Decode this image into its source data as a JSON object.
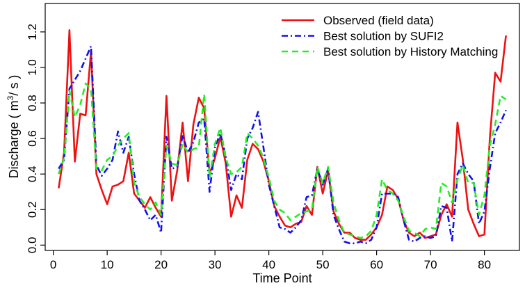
{
  "chart_data": {
    "type": "line",
    "title": "",
    "xlabel": "Time Point",
    "ylabel": "Discharge ( m³/ s )",
    "ylabel_parts": {
      "prefix": "Discharge ( m",
      "superscript": "3",
      "suffix": "/ s )"
    },
    "xlim": [
      -1.5,
      86.5
    ],
    "ylim": [
      -0.03,
      1.36
    ],
    "xticks": [
      0,
      10,
      20,
      30,
      40,
      50,
      60,
      70,
      80
    ],
    "yticks": [
      0.0,
      0.2,
      0.4,
      0.6,
      0.8,
      1.0,
      1.2
    ],
    "ytick_labels": [
      "0.0",
      "0.2",
      "0.4",
      "0.6",
      "0.8",
      "1.0",
      "1.2"
    ],
    "legend_position": "top-right",
    "x": [
      1,
      2,
      3,
      4,
      5,
      6,
      7,
      8,
      9,
      10,
      11,
      12,
      13,
      14,
      15,
      16,
      17,
      18,
      19,
      20,
      21,
      22,
      23,
      24,
      25,
      26,
      27,
      28,
      29,
      30,
      31,
      32,
      33,
      34,
      35,
      36,
      37,
      38,
      39,
      40,
      41,
      42,
      43,
      44,
      45,
      46,
      47,
      48,
      49,
      50,
      51,
      52,
      53,
      54,
      55,
      56,
      57,
      58,
      59,
      60,
      61,
      62,
      63,
      64,
      65,
      66,
      67,
      68,
      69,
      70,
      71,
      72,
      73,
      74,
      75,
      76,
      77,
      78,
      79,
      80,
      81,
      82,
      83,
      84
    ],
    "series": [
      {
        "name": "Observed (field data)",
        "color": "#ee1111",
        "style": "solid",
        "values": [
          0.32,
          0.52,
          1.21,
          0.47,
          0.74,
          0.73,
          1.09,
          0.4,
          0.31,
          0.23,
          0.33,
          0.34,
          0.36,
          0.52,
          0.29,
          0.25,
          0.21,
          0.27,
          0.21,
          0.16,
          0.84,
          0.25,
          0.42,
          0.69,
          0.36,
          0.68,
          0.83,
          0.77,
          0.4,
          0.49,
          0.61,
          0.46,
          0.16,
          0.28,
          0.21,
          0.48,
          0.57,
          0.54,
          0.47,
          0.36,
          0.22,
          0.16,
          0.11,
          0.1,
          0.12,
          0.13,
          0.22,
          0.17,
          0.44,
          0.29,
          0.42,
          0.19,
          0.12,
          0.07,
          0.07,
          0.04,
          0.03,
          0.03,
          0.06,
          0.1,
          0.17,
          0.33,
          0.31,
          0.26,
          0.14,
          0.07,
          0.05,
          0.07,
          0.04,
          0.05,
          0.06,
          0.17,
          0.23,
          0.16,
          0.69,
          0.48,
          0.2,
          0.12,
          0.05,
          0.06,
          0.6,
          0.97,
          0.92,
          1.18
        ]
      },
      {
        "name": "Best solution by SUFI2",
        "color": "#1111ee",
        "style": "dashdot",
        "values": [
          0.43,
          0.48,
          0.88,
          0.93,
          0.98,
          1.05,
          1.12,
          0.45,
          0.39,
          0.43,
          0.48,
          0.64,
          0.52,
          0.61,
          0.4,
          0.25,
          0.2,
          0.14,
          0.17,
          0.07,
          0.61,
          0.43,
          0.44,
          0.62,
          0.52,
          0.58,
          0.69,
          0.71,
          0.3,
          0.55,
          0.63,
          0.5,
          0.31,
          0.4,
          0.37,
          0.6,
          0.66,
          0.75,
          0.55,
          0.34,
          0.22,
          0.1,
          0.09,
          0.07,
          0.1,
          0.14,
          0.27,
          0.28,
          0.43,
          0.34,
          0.43,
          0.17,
          0.09,
          0.02,
          0.01,
          0.01,
          0.02,
          0.01,
          0.03,
          0.1,
          0.29,
          0.29,
          0.29,
          0.27,
          0.14,
          0.03,
          0.02,
          0.04,
          0.05,
          0.04,
          0.05,
          0.22,
          0.21,
          0.02,
          0.4,
          0.46,
          0.4,
          0.36,
          0.12,
          0.19,
          0.43,
          0.63,
          0.69,
          0.76
        ]
      },
      {
        "name": "Best solution by History Matching",
        "color": "#22ee22",
        "style": "dashed",
        "values": [
          0.4,
          0.49,
          0.87,
          0.72,
          0.79,
          0.91,
          0.88,
          0.43,
          0.42,
          0.48,
          0.5,
          0.56,
          0.6,
          0.63,
          0.35,
          0.27,
          0.23,
          0.2,
          0.24,
          0.17,
          0.56,
          0.46,
          0.45,
          0.57,
          0.52,
          0.54,
          0.55,
          0.85,
          0.38,
          0.57,
          0.66,
          0.49,
          0.4,
          0.41,
          0.44,
          0.63,
          0.6,
          0.56,
          0.49,
          0.38,
          0.25,
          0.2,
          0.18,
          0.14,
          0.16,
          0.18,
          0.19,
          0.2,
          0.44,
          0.35,
          0.44,
          0.24,
          0.14,
          0.07,
          0.06,
          0.05,
          0.04,
          0.05,
          0.08,
          0.17,
          0.37,
          0.31,
          0.29,
          0.25,
          0.16,
          0.08,
          0.07,
          0.05,
          0.09,
          0.1,
          0.09,
          0.35,
          0.33,
          0.24,
          0.37,
          0.45,
          0.35,
          0.35,
          0.17,
          0.28,
          0.56,
          0.68,
          0.84,
          0.82
        ]
      }
    ]
  }
}
